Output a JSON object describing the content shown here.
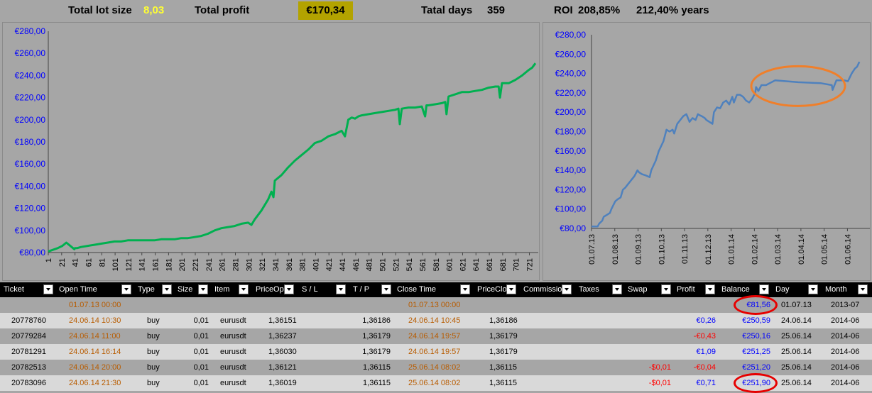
{
  "summary": {
    "lot_label": "Total lot size",
    "lot_value": "8,03",
    "profit_label": "Total profit",
    "profit_value": "€170,34",
    "days_label": "Tatal days",
    "days_value": "359",
    "roi_label": "ROI",
    "roi_value": "208,85%",
    "roi_years": "212,40% years"
  },
  "chart_data": [
    {
      "type": "line",
      "series": [
        {
          "color": "#00b050"
        }
      ],
      "ylim": [
        80,
        280
      ],
      "yticks": [
        "€80,00",
        "€100,00",
        "€120,00",
        "€140,00",
        "€160,00",
        "€180,00",
        "€200,00",
        "€220,00",
        "€240,00",
        "€260,00",
        "€280,00"
      ],
      "xticks": [
        "1",
        "21",
        "41",
        "61",
        "81",
        "101",
        "121",
        "141",
        "161",
        "181",
        "201",
        "221",
        "241",
        "261",
        "281",
        "301",
        "321",
        "341",
        "361",
        "381",
        "401",
        "421",
        "441",
        "461",
        "481",
        "501",
        "521",
        "541",
        "561",
        "581",
        "601",
        "621",
        "641",
        "661",
        "681",
        "701",
        "721"
      ],
      "x": [
        1,
        15,
        22,
        28,
        40,
        41,
        44,
        50,
        60,
        70,
        80,
        90,
        100,
        110,
        120,
        130,
        140,
        150,
        160,
        170,
        180,
        190,
        200,
        210,
        220,
        230,
        240,
        250,
        260,
        270,
        280,
        290,
        300,
        305,
        310,
        320,
        330,
        335,
        338,
        340,
        350,
        360,
        370,
        380,
        390,
        400,
        410,
        420,
        430,
        440,
        445,
        450,
        455,
        460,
        465,
        470,
        480,
        490,
        500,
        510,
        520,
        525,
        527,
        530,
        540,
        550,
        560,
        565,
        567,
        570,
        580,
        590,
        595,
        597,
        600,
        610,
        620,
        630,
        640,
        650,
        660,
        670,
        675,
        677,
        680,
        690,
        700,
        710,
        720,
        725,
        730
      ],
      "values": [
        81,
        84,
        86,
        89,
        83,
        84,
        84,
        85,
        86,
        87,
        88,
        89,
        90,
        90,
        91,
        91,
        91,
        91,
        91,
        92,
        92,
        92,
        93,
        93,
        94,
        95,
        97,
        100,
        102,
        103,
        104,
        106,
        107,
        105,
        110,
        118,
        128,
        135,
        130,
        145,
        150,
        157,
        163,
        168,
        173,
        179,
        181,
        185,
        187,
        190,
        185,
        200,
        202,
        201,
        203,
        204,
        205,
        206,
        207,
        208,
        209,
        210,
        196,
        210,
        211,
        211,
        212,
        203,
        213,
        213,
        214,
        215,
        216,
        205,
        221,
        223,
        225,
        225,
        226,
        227,
        229,
        230,
        230,
        220,
        233,
        233,
        236,
        240,
        245,
        247,
        251
      ]
    },
    {
      "type": "line",
      "series": [
        {
          "color": "#4f81bd"
        }
      ],
      "ylim": [
        80,
        280
      ],
      "yticks": [
        "€80,00",
        "€100,00",
        "€120,00",
        "€140,00",
        "€160,00",
        "€180,00",
        "€200,00",
        "€220,00",
        "€240,00",
        "€260,00",
        "€280,00"
      ],
      "xticks": [
        "01.07.13",
        "01.08.13",
        "01.09.13",
        "01.10.13",
        "01.11.13",
        "01.12.13",
        "01.01.14",
        "01.02.14",
        "01.03.14",
        "01.04.14",
        "01.05.14",
        "01.06.14"
      ],
      "x": [
        0,
        8,
        10,
        14,
        16,
        20,
        24,
        26,
        31,
        34,
        38,
        41,
        44,
        48,
        52,
        56,
        60,
        62,
        66,
        70,
        76,
        78,
        84,
        88,
        94,
        98,
        102,
        106,
        108,
        112,
        116,
        120,
        124,
        128,
        132,
        136,
        139,
        141,
        144,
        148,
        150,
        154,
        158,
        160,
        164,
        168,
        172,
        176,
        180,
        184,
        186,
        190,
        194,
        198,
        202,
        206,
        210,
        214,
        215,
        218,
        222,
        228,
        240,
        270,
        300,
        314,
        315,
        320,
        330,
        335,
        340,
        344,
        347,
        350
      ],
      "values": [
        82,
        82,
        85,
        88,
        92,
        94,
        96,
        100,
        108,
        110,
        112,
        120,
        122,
        126,
        130,
        134,
        140,
        138,
        136,
        135,
        133,
        140,
        150,
        160,
        170,
        182,
        180,
        182,
        178,
        188,
        192,
        196,
        198,
        190,
        194,
        192,
        198,
        197,
        196,
        194,
        192,
        190,
        188,
        200,
        205,
        204,
        210,
        212,
        208,
        216,
        210,
        218,
        218,
        216,
        212,
        210,
        214,
        220,
        226,
        222,
        228,
        228,
        233,
        231,
        230,
        228,
        223,
        233,
        233,
        232,
        240,
        245,
        247,
        252
      ]
    }
  ],
  "table": {
    "headers": [
      "Ticket",
      "Open Time",
      "Type",
      "Size",
      "Item",
      "PriceOpe",
      "S / L",
      "T / P",
      "Close Time",
      "PriceClos",
      "Commission",
      "Taxes",
      "Swap",
      "Profit",
      "Balance",
      "Day",
      "Month"
    ],
    "rows": [
      {
        "ticket": "",
        "open": "01.07.13 00:00",
        "type": "",
        "size": "",
        "item": "",
        "po": "",
        "sl": "",
        "tp": "",
        "close": "01.07.13 00:00",
        "pc": "",
        "comm": "",
        "taxes": "",
        "swap": "",
        "profit": "",
        "balance": "€81,56",
        "day": "01.07.13",
        "month": "2013-07"
      },
      {
        "ticket": "20778760",
        "open": "24.06.14 10:30",
        "type": "buy",
        "size": "0,01",
        "item": "eurusdt",
        "po": "1,36151",
        "sl": "",
        "tp": "1,36186",
        "close": "24.06.14 10:45",
        "pc": "1,36186",
        "comm": "",
        "taxes": "",
        "swap": "",
        "profit": "€0,26",
        "balance": "€250,59",
        "day": "24.06.14",
        "month": "2014-06"
      },
      {
        "ticket": "20779284",
        "open": "24.06.14 11:00",
        "type": "buy",
        "size": "0,01",
        "item": "eurusdt",
        "po": "1,36237",
        "sl": "",
        "tp": "1,36179",
        "close": "24.06.14 19:57",
        "pc": "1,36179",
        "comm": "",
        "taxes": "",
        "swap": "",
        "profit": "-€0,43",
        "balance": "€250,16",
        "day": "25.06.14",
        "month": "2014-06"
      },
      {
        "ticket": "20781291",
        "open": "24.06.14 16:14",
        "type": "buy",
        "size": "0,01",
        "item": "eurusdt",
        "po": "1,36030",
        "sl": "",
        "tp": "1,36179",
        "close": "24.06.14 19:57",
        "pc": "1,36179",
        "comm": "",
        "taxes": "",
        "swap": "",
        "profit": "€1,09",
        "balance": "€251,25",
        "day": "25.06.14",
        "month": "2014-06"
      },
      {
        "ticket": "20782513",
        "open": "24.06.14 20:00",
        "type": "buy",
        "size": "0,01",
        "item": "eurusdt",
        "po": "1,36121",
        "sl": "",
        "tp": "1,36115",
        "close": "25.06.14 08:02",
        "pc": "1,36115",
        "comm": "",
        "taxes": "",
        "swap": "-$0,01",
        "profit": "-€0,04",
        "balance": "€251,20",
        "day": "25.06.14",
        "month": "2014-06"
      },
      {
        "ticket": "20783096",
        "open": "24.06.14 21:30",
        "type": "buy",
        "size": "0,01",
        "item": "eurusdt",
        "po": "1,36019",
        "sl": "",
        "tp": "1,36115",
        "close": "25.06.14 08:02",
        "pc": "1,36115",
        "comm": "",
        "taxes": "",
        "swap": "-$0,01",
        "profit": "€0,71",
        "balance": "€251,90",
        "day": "25.06.14",
        "month": "2014-06"
      }
    ]
  },
  "colors": {
    "highlight_yellow": "#ffff33",
    "profit_box": "#b3a300",
    "left_line": "#00b050",
    "right_line": "#4f81bd",
    "annotation_orange": "#f07f2a",
    "annotation_red": "#e60000"
  },
  "icons": {
    "filter_button": "dropdown-arrow-icon"
  }
}
